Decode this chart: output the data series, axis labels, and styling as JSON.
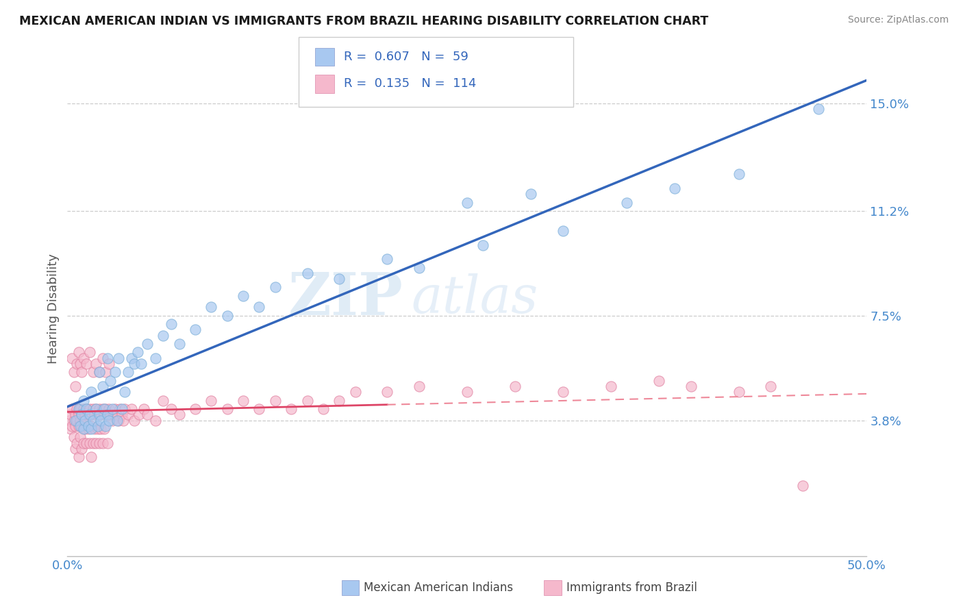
{
  "title": "MEXICAN AMERICAN INDIAN VS IMMIGRANTS FROM BRAZIL HEARING DISABILITY CORRELATION CHART",
  "source": "Source: ZipAtlas.com",
  "ylabel": "Hearing Disability",
  "xlim": [
    0.0,
    0.5
  ],
  "ylim": [
    -0.01,
    0.165
  ],
  "yticks": [
    0.038,
    0.075,
    0.112,
    0.15
  ],
  "ytick_labels": [
    "3.8%",
    "7.5%",
    "11.2%",
    "15.0%"
  ],
  "xticks": [
    0.0,
    0.5
  ],
  "xtick_labels": [
    "0.0%",
    "50.0%"
  ],
  "watermark_zip": "ZIP",
  "watermark_atlas": "atlas",
  "series1_label": "Mexican American Indians",
  "series2_label": "Immigrants from Brazil",
  "series1_color": "#A8C8F0",
  "series1_edge": "#7AAED8",
  "series2_color": "#F5B8CC",
  "series2_edge": "#E080A0",
  "series1_R": "0.607",
  "series1_N": "59",
  "series2_R": "0.135",
  "series2_N": "114",
  "trendline1_color": "#3366BB",
  "trendline2_solid_color": "#DD4466",
  "trendline2_dash_color": "#EE8899",
  "gridline_color": "#CCCCCC",
  "background_color": "#FFFFFF",
  "title_color": "#1A1A1A",
  "title_fontsize": 12.5,
  "axis_color": "#4488CC",
  "source_color": "#888888",
  "legend_text_color": "#3366BB",
  "series1_x": [
    0.005,
    0.007,
    0.008,
    0.009,
    0.01,
    0.01,
    0.011,
    0.012,
    0.013,
    0.014,
    0.015,
    0.015,
    0.016,
    0.018,
    0.019,
    0.02,
    0.02,
    0.021,
    0.022,
    0.023,
    0.024,
    0.025,
    0.025,
    0.026,
    0.027,
    0.028,
    0.03,
    0.031,
    0.032,
    0.034,
    0.036,
    0.038,
    0.04,
    0.042,
    0.044,
    0.046,
    0.05,
    0.055,
    0.06,
    0.065,
    0.07,
    0.08,
    0.09,
    0.1,
    0.11,
    0.12,
    0.13,
    0.15,
    0.17,
    0.2,
    0.22,
    0.25,
    0.26,
    0.29,
    0.31,
    0.35,
    0.38,
    0.42,
    0.47
  ],
  "series1_y": [
    0.038,
    0.042,
    0.036,
    0.04,
    0.035,
    0.045,
    0.038,
    0.042,
    0.036,
    0.04,
    0.035,
    0.048,
    0.038,
    0.042,
    0.036,
    0.04,
    0.055,
    0.038,
    0.05,
    0.042,
    0.036,
    0.04,
    0.06,
    0.038,
    0.052,
    0.042,
    0.055,
    0.038,
    0.06,
    0.042,
    0.048,
    0.055,
    0.06,
    0.058,
    0.062,
    0.058,
    0.065,
    0.06,
    0.068,
    0.072,
    0.065,
    0.07,
    0.078,
    0.075,
    0.082,
    0.078,
    0.085,
    0.09,
    0.088,
    0.095,
    0.092,
    0.115,
    0.1,
    0.118,
    0.105,
    0.115,
    0.12,
    0.125,
    0.148
  ],
  "series2_x": [
    0.001,
    0.002,
    0.002,
    0.003,
    0.003,
    0.004,
    0.004,
    0.005,
    0.005,
    0.005,
    0.006,
    0.006,
    0.006,
    0.007,
    0.007,
    0.007,
    0.008,
    0.008,
    0.008,
    0.009,
    0.009,
    0.009,
    0.01,
    0.01,
    0.01,
    0.011,
    0.011,
    0.012,
    0.012,
    0.013,
    0.013,
    0.014,
    0.014,
    0.015,
    0.015,
    0.015,
    0.016,
    0.016,
    0.017,
    0.017,
    0.018,
    0.018,
    0.019,
    0.019,
    0.02,
    0.02,
    0.021,
    0.021,
    0.022,
    0.022,
    0.023,
    0.023,
    0.024,
    0.025,
    0.025,
    0.026,
    0.027,
    0.028,
    0.029,
    0.03,
    0.031,
    0.032,
    0.033,
    0.034,
    0.035,
    0.036,
    0.038,
    0.04,
    0.042,
    0.045,
    0.048,
    0.05,
    0.055,
    0.06,
    0.065,
    0.07,
    0.08,
    0.09,
    0.1,
    0.11,
    0.12,
    0.13,
    0.14,
    0.15,
    0.16,
    0.17,
    0.18,
    0.2,
    0.22,
    0.25,
    0.28,
    0.31,
    0.34,
    0.37,
    0.39,
    0.42,
    0.44,
    0.46,
    0.003,
    0.004,
    0.005,
    0.006,
    0.007,
    0.008,
    0.009,
    0.01,
    0.012,
    0.014,
    0.016,
    0.018,
    0.02,
    0.022,
    0.024,
    0.026
  ],
  "series2_y": [
    0.038,
    0.04,
    0.035,
    0.042,
    0.036,
    0.038,
    0.032,
    0.04,
    0.036,
    0.028,
    0.042,
    0.038,
    0.03,
    0.04,
    0.036,
    0.025,
    0.042,
    0.038,
    0.032,
    0.04,
    0.036,
    0.028,
    0.042,
    0.038,
    0.03,
    0.04,
    0.035,
    0.042,
    0.03,
    0.04,
    0.035,
    0.042,
    0.03,
    0.04,
    0.036,
    0.025,
    0.042,
    0.03,
    0.04,
    0.035,
    0.042,
    0.03,
    0.04,
    0.035,
    0.042,
    0.03,
    0.04,
    0.035,
    0.042,
    0.03,
    0.04,
    0.035,
    0.042,
    0.04,
    0.03,
    0.042,
    0.04,
    0.038,
    0.04,
    0.042,
    0.04,
    0.038,
    0.042,
    0.04,
    0.038,
    0.042,
    0.04,
    0.042,
    0.038,
    0.04,
    0.042,
    0.04,
    0.038,
    0.045,
    0.042,
    0.04,
    0.042,
    0.045,
    0.042,
    0.045,
    0.042,
    0.045,
    0.042,
    0.045,
    0.042,
    0.045,
    0.048,
    0.048,
    0.05,
    0.048,
    0.05,
    0.048,
    0.05,
    0.052,
    0.05,
    0.048,
    0.05,
    0.015,
    0.06,
    0.055,
    0.05,
    0.058,
    0.062,
    0.058,
    0.055,
    0.06,
    0.058,
    0.062,
    0.055,
    0.058,
    0.055,
    0.06,
    0.055,
    0.058
  ]
}
